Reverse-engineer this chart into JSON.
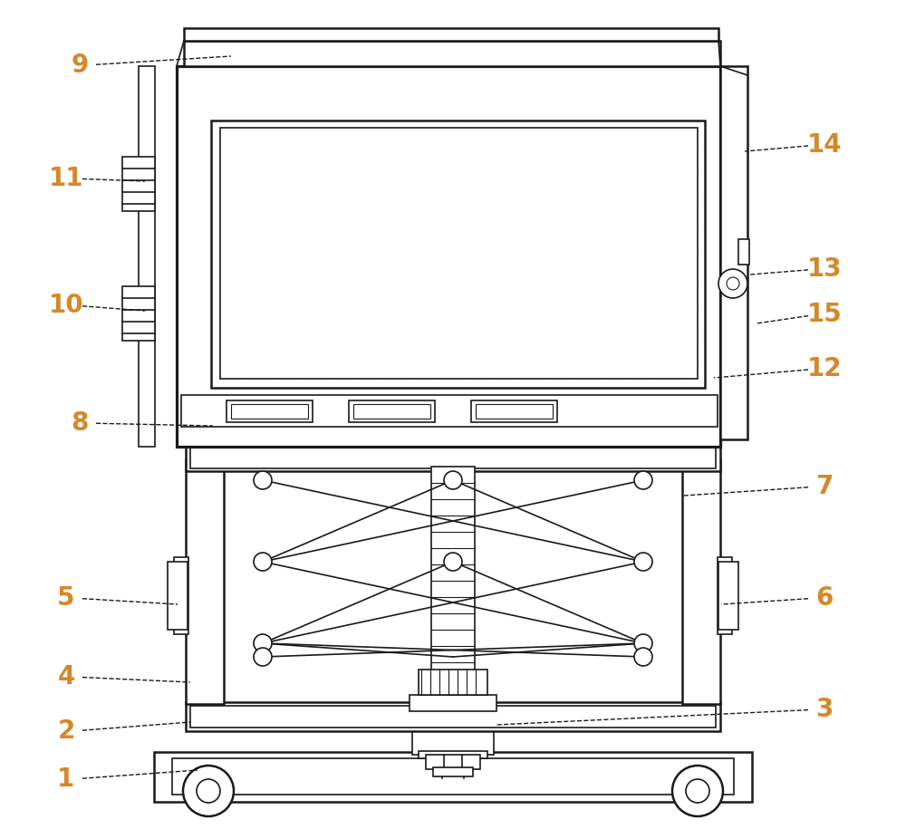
{
  "bg_color": "#ffffff",
  "line_color": "#1a1a1a",
  "label_color": "#D4882A",
  "fig_width": 10.0,
  "fig_height": 9.15,
  "dpi": 100
}
